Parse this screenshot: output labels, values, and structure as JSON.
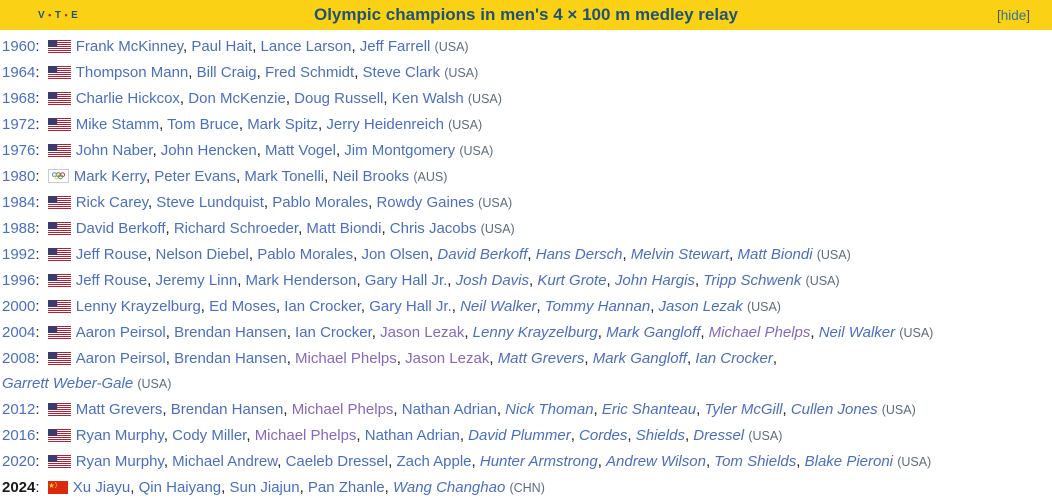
{
  "header": {
    "vte": [
      "V",
      "T",
      "E"
    ],
    "vte_separator": "•",
    "title": "Olympic champions in men's 4 × 100 m medley relay",
    "hide": {
      "open": "[",
      "label": "hide",
      "close": "]"
    },
    "background_color": "#FBD116",
    "title_color": "#1E5373"
  },
  "colors": {
    "link_blue": "#4A6FC1",
    "visited_purple": "#8768BD",
    "country_gray": "#5D6C7B",
    "usa_flag_red": "#B22234",
    "usa_flag_blue": "#3C3B6E",
    "china_flag_red": "#DE2910",
    "china_flag_yellow": "#FFDE00"
  },
  "punct": {
    "colon": ": ",
    "separator": ", ",
    "space": " "
  },
  "rows": [
    {
      "year": "1960",
      "year_bold": false,
      "flag": "usa-flag-icon",
      "country_label": "(USA)",
      "names": [
        {
          "text": "Frank McKinney"
        },
        {
          "text": "Paul Hait"
        },
        {
          "text": "Lance Larson"
        },
        {
          "text": "Jeff Farrell"
        }
      ]
    },
    {
      "year": "1964",
      "year_bold": false,
      "flag": "usa-flag-icon",
      "country_label": "(USA)",
      "names": [
        {
          "text": "Thompson Mann"
        },
        {
          "text": "Bill Craig"
        },
        {
          "text": "Fred Schmidt"
        },
        {
          "text": "Steve Clark"
        }
      ]
    },
    {
      "year": "1968",
      "year_bold": false,
      "flag": "usa-flag-icon",
      "country_label": "(USA)",
      "names": [
        {
          "text": "Charlie Hickcox"
        },
        {
          "text": "Don McKenzie"
        },
        {
          "text": "Doug Russell"
        },
        {
          "text": "Ken Walsh"
        }
      ]
    },
    {
      "year": "1972",
      "year_bold": false,
      "flag": "usa-flag-icon",
      "country_label": "(USA)",
      "names": [
        {
          "text": "Mike Stamm"
        },
        {
          "text": "Tom Bruce"
        },
        {
          "text": "Mark Spitz"
        },
        {
          "text": "Jerry Heidenreich"
        }
      ]
    },
    {
      "year": "1976",
      "year_bold": false,
      "flag": "usa-flag-icon",
      "country_label": "(USA)",
      "names": [
        {
          "text": "John Naber"
        },
        {
          "text": "John Hencken"
        },
        {
          "text": "Matt Vogel"
        },
        {
          "text": "Jim Montgomery"
        }
      ]
    },
    {
      "year": "1980",
      "year_bold": false,
      "flag": "olympic-flag-icon",
      "country_label": "(AUS)",
      "names": [
        {
          "text": "Mark Kerry"
        },
        {
          "text": "Peter Evans"
        },
        {
          "text": "Mark Tonelli"
        },
        {
          "text": "Neil Brooks"
        }
      ]
    },
    {
      "year": "1984",
      "year_bold": false,
      "flag": "usa-flag-icon",
      "country_label": "(USA)",
      "names": [
        {
          "text": "Rick Carey"
        },
        {
          "text": "Steve Lundquist"
        },
        {
          "text": "Pablo Morales"
        },
        {
          "text": "Rowdy Gaines"
        }
      ]
    },
    {
      "year": "1988",
      "year_bold": false,
      "flag": "usa-flag-icon",
      "country_label": "(USA)",
      "names": [
        {
          "text": "David Berkoff"
        },
        {
          "text": "Richard Schroeder"
        },
        {
          "text": "Matt Biondi"
        },
        {
          "text": "Chris Jacobs"
        }
      ]
    },
    {
      "year": "1992",
      "year_bold": false,
      "flag": "usa-flag-icon",
      "country_label": "(USA)",
      "names": [
        {
          "text": "Jeff Rouse"
        },
        {
          "text": "Nelson Diebel"
        },
        {
          "text": "Pablo Morales"
        },
        {
          "text": "Jon Olsen"
        },
        {
          "text": "David Berkoff",
          "italic": true
        },
        {
          "text": "Hans Dersch",
          "italic": true
        },
        {
          "text": "Melvin Stewart",
          "italic": true
        },
        {
          "text": "Matt Biondi",
          "italic": true
        }
      ]
    },
    {
      "year": "1996",
      "year_bold": false,
      "flag": "usa-flag-icon",
      "country_label": "(USA)",
      "names": [
        {
          "text": "Jeff Rouse"
        },
        {
          "text": "Jeremy Linn"
        },
        {
          "text": "Mark Henderson"
        },
        {
          "text": "Gary Hall Jr."
        },
        {
          "text": "Josh Davis",
          "italic": true
        },
        {
          "text": "Kurt Grote",
          "italic": true
        },
        {
          "text": "John Hargis",
          "italic": true
        },
        {
          "text": "Tripp Schwenk",
          "italic": true
        }
      ]
    },
    {
      "year": "2000",
      "year_bold": false,
      "flag": "usa-flag-icon",
      "country_label": "(USA)",
      "names": [
        {
          "text": "Lenny Krayzelburg"
        },
        {
          "text": "Ed Moses"
        },
        {
          "text": "Ian Crocker"
        },
        {
          "text": "Gary Hall Jr."
        },
        {
          "text": "Neil Walker",
          "italic": true
        },
        {
          "text": "Tommy Hannan",
          "italic": true
        },
        {
          "text": "Jason Lezak",
          "italic": true
        }
      ]
    },
    {
      "year": "2004",
      "year_bold": false,
      "flag": "usa-flag-icon",
      "country_label": "(USA)",
      "names": [
        {
          "text": "Aaron Peirsol"
        },
        {
          "text": "Brendan Hansen"
        },
        {
          "text": "Ian Crocker"
        },
        {
          "text": "Jason Lezak",
          "visited": true
        },
        {
          "text": "Lenny Krayzelburg",
          "italic": true
        },
        {
          "text": "Mark Gangloff",
          "italic": true
        },
        {
          "text": "Michael Phelps",
          "italic": true,
          "visited": true
        },
        {
          "text": "Neil Walker",
          "italic": true
        }
      ]
    },
    {
      "year": "2008",
      "year_bold": false,
      "flag": "usa-flag-icon",
      "country_label": "(USA)",
      "break_after": 6,
      "names": [
        {
          "text": "Aaron Peirsol"
        },
        {
          "text": "Brendan Hansen"
        },
        {
          "text": "Michael Phelps",
          "visited": true
        },
        {
          "text": "Jason Lezak",
          "visited": true
        },
        {
          "text": "Matt Grevers",
          "italic": true
        },
        {
          "text": "Mark Gangloff",
          "italic": true
        },
        {
          "text": "Ian Crocker",
          "italic": true
        },
        {
          "text": "Garrett Weber-Gale",
          "italic": true
        }
      ]
    },
    {
      "year": "2012",
      "year_bold": false,
      "flag": "usa-flag-icon",
      "country_label": "(USA)",
      "names": [
        {
          "text": "Matt Grevers"
        },
        {
          "text": "Brendan Hansen"
        },
        {
          "text": "Michael Phelps",
          "visited": true
        },
        {
          "text": "Nathan Adrian"
        },
        {
          "text": "Nick Thoman",
          "italic": true
        },
        {
          "text": "Eric Shanteau",
          "italic": true
        },
        {
          "text": "Tyler McGill",
          "italic": true
        },
        {
          "text": "Cullen Jones",
          "italic": true
        }
      ]
    },
    {
      "year": "2016",
      "year_bold": false,
      "flag": "usa-flag-icon",
      "country_label": "(USA)",
      "names": [
        {
          "text": "Ryan Murphy"
        },
        {
          "text": "Cody Miller"
        },
        {
          "text": "Michael Phelps",
          "visited": true
        },
        {
          "text": "Nathan Adrian"
        },
        {
          "text": "David Plummer",
          "italic": true
        },
        {
          "text": "Cordes",
          "italic": true
        },
        {
          "text": "Shields",
          "italic": true
        },
        {
          "text": "Dressel",
          "italic": true
        }
      ]
    },
    {
      "year": "2020",
      "year_bold": false,
      "flag": "usa-flag-icon",
      "country_label": "(USA)",
      "names": [
        {
          "text": "Ryan Murphy"
        },
        {
          "text": "Michael Andrew"
        },
        {
          "text": "Caeleb Dressel"
        },
        {
          "text": "Zach Apple"
        },
        {
          "text": "Hunter Armstrong",
          "italic": true
        },
        {
          "text": "Andrew Wilson",
          "italic": true
        },
        {
          "text": "Tom Shields",
          "italic": true
        },
        {
          "text": "Blake Pieroni",
          "italic": true
        }
      ]
    },
    {
      "year": "2024",
      "year_bold": true,
      "flag": "china-flag-icon",
      "country_label": "(CHN)",
      "names": [
        {
          "text": "Xu Jiayu"
        },
        {
          "text": "Qin Haiyang"
        },
        {
          "text": "Sun Jiajun"
        },
        {
          "text": "Pan Zhanle"
        },
        {
          "text": "Wang Changhao",
          "italic": true
        }
      ]
    }
  ]
}
